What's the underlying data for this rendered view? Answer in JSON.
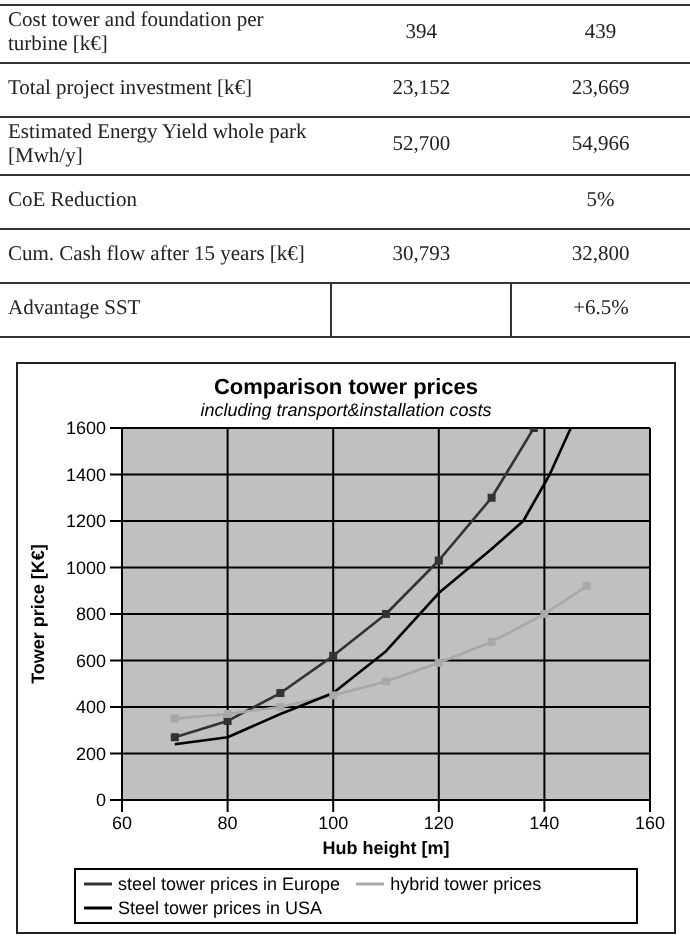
{
  "chart_data": [
    {
      "type": "other",
      "cell_labels": [
        [
          "Cost tower and foundation per turbine [k€]",
          "394",
          "439"
        ],
        [
          "Total project investment [k€]",
          "23,152",
          "23,669"
        ],
        [
          "Estimated Energy Yield whole park [Mwh/y]",
          "52,700",
          "54,966"
        ],
        [
          "CoE Reduction",
          null,
          "5%"
        ],
        [
          "Cum. Cash flow after 15 years [k€]",
          "30,793",
          "32,800"
        ],
        [
          "Advantage SST",
          null,
          "+6.5%"
        ]
      ]
    },
    {
      "type": "line",
      "title": "Comparison tower prices",
      "subtitle": "including transport&installation costs",
      "xlabel": "Hub height [m]",
      "ylabel": "Tower price [K€]",
      "xlim": [
        60,
        160
      ],
      "xticks": [
        60,
        80,
        100,
        120,
        140,
        160
      ],
      "ylim": [
        0,
        1600
      ],
      "yticks": [
        0,
        200,
        400,
        600,
        800,
        1000,
        1200,
        1400,
        1600
      ],
      "grid": true,
      "legend": "bottom",
      "series": [
        {
          "name": "steel tower prices in Europe",
          "color": "#333333",
          "marker": "square",
          "x": [
            70,
            80,
            90,
            100,
            110,
            120,
            130,
            138
          ],
          "values": [
            270,
            340,
            460,
            620,
            800,
            1030,
            1300,
            1600
          ]
        },
        {
          "name": "hybrid tower prices",
          "color": "#a8a8a8",
          "marker": "square",
          "x": [
            70,
            80,
            90,
            100,
            110,
            120,
            130,
            140,
            148
          ],
          "values": [
            350,
            370,
            400,
            450,
            510,
            590,
            680,
            800,
            920
          ]
        },
        {
          "name": "Steel tower prices in USA",
          "color": "#000000",
          "marker": "none",
          "x": [
            70,
            80,
            90,
            100,
            110,
            120,
            130,
            136,
            141,
            145
          ],
          "values": [
            240,
            270,
            370,
            460,
            640,
            890,
            1080,
            1200,
            1400,
            1600
          ]
        }
      ]
    }
  ]
}
